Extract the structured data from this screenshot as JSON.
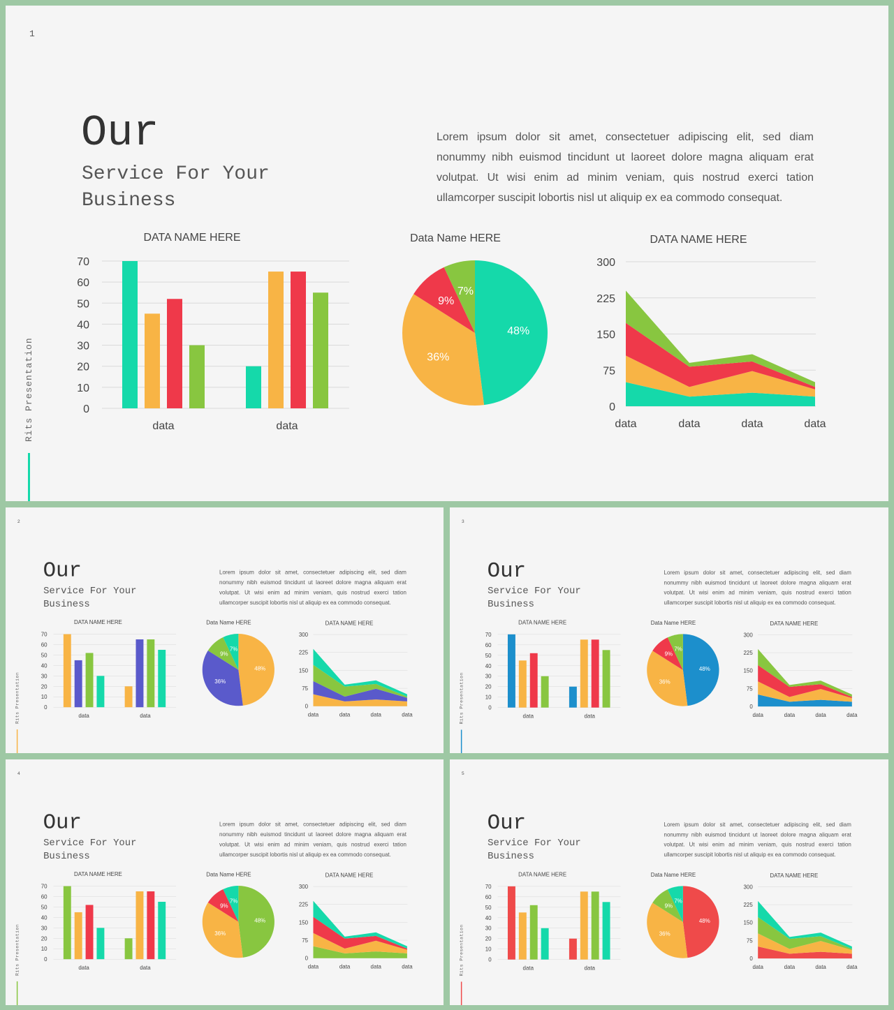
{
  "texts": {
    "title": "Our",
    "subtitle": "Service For Your Business",
    "side_label": "Rits Presentation",
    "lorem": "Lorem ipsum dolor sit amet, consectetuer adipiscing elit, sed diam nonummy nibh euismod tincidunt ut laoreet dolore magna aliquam erat volutpat. Ut wisi enim ad minim veniam, quis nostrud exerci tation ullamcorper suscipit lobortis nisl ut aliquip ex ea commodo consequat."
  },
  "slides": [
    {
      "number": "1",
      "colors": [
        "#15d9aa",
        "#f8b445",
        "#ef394a",
        "#88c640"
      ],
      "accent": "#15d9aa"
    },
    {
      "number": "2",
      "colors": [
        "#f8b445",
        "#5a5acb",
        "#88c640",
        "#15d9aa"
      ],
      "accent": "#f8b445"
    },
    {
      "number": "3",
      "colors": [
        "#1c8fcc",
        "#f8b445",
        "#ef394a",
        "#88c640"
      ],
      "accent": "#1c8fcc"
    },
    {
      "number": "4",
      "colors": [
        "#88c640",
        "#f8b445",
        "#ef394a",
        "#15d9aa"
      ],
      "accent": "#88c640"
    },
    {
      "number": "5",
      "colors": [
        "#ef4a4a",
        "#f8b445",
        "#88c640",
        "#15d9aa"
      ],
      "accent": "#ef4a4a"
    }
  ],
  "chart_data": [
    {
      "type": "bar",
      "title": "DATA NAME HERE",
      "categories": [
        "data",
        "data"
      ],
      "series": [
        {
          "values": [
            70,
            20
          ]
        },
        {
          "values": [
            45,
            65
          ]
        },
        {
          "values": [
            52,
            65
          ]
        },
        {
          "values": [
            30,
            55
          ]
        }
      ],
      "yticks": [
        "0",
        "10",
        "20",
        "30",
        "40",
        "50",
        "60",
        "70"
      ],
      "ylim": [
        0,
        70
      ],
      "grid": true
    },
    {
      "type": "pie",
      "title": "Data Name HERE",
      "values": [
        48,
        36,
        9,
        7
      ],
      "labels": [
        "48%",
        "36%",
        "9%",
        "7%"
      ]
    },
    {
      "type": "area",
      "title": "DATA NAME HERE",
      "categories": [
        "data",
        "data",
        "data",
        "data"
      ],
      "series": [
        {
          "values": [
            50,
            20,
            28,
            20
          ]
        },
        {
          "values": [
            55,
            20,
            45,
            15
          ]
        },
        {
          "values": [
            68,
            42,
            20,
            5
          ]
        },
        {
          "values": [
            67,
            8,
            15,
            10
          ]
        }
      ],
      "yticks": [
        "0",
        "75",
        "150",
        "225",
        "300"
      ],
      "ylim": [
        0,
        300
      ],
      "stacked": true,
      "grid": true
    }
  ]
}
